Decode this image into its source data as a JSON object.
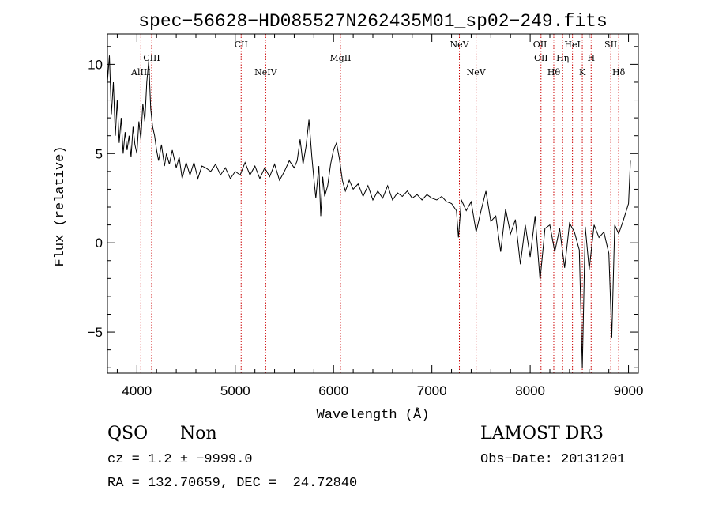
{
  "chart_data": {
    "type": "line",
    "title": "spec−56628−HD085527N262435M01_sp02−249.fits",
    "xlabel": "Wavelength (Å)",
    "ylabel": "Flux (relative)",
    "xlim": [
      3700,
      9100
    ],
    "ylim": [
      -7.3,
      11.7
    ],
    "xticks": [
      4000,
      5000,
      6000,
      7000,
      8000,
      9000
    ],
    "yticks": [
      -5,
      0,
      5,
      10
    ],
    "grid": false,
    "series": [
      {
        "x": [
          3700,
          3720,
          3740,
          3760,
          3780,
          3800,
          3820,
          3840,
          3860,
          3880,
          3900,
          3920,
          3940,
          3960,
          3980,
          4000,
          4020,
          4040,
          4060,
          4080,
          4100,
          4120,
          4140,
          4160,
          4180,
          4200,
          4220,
          4250,
          4280,
          4300,
          4330,
          4360,
          4400,
          4430,
          4460,
          4500,
          4540,
          4580,
          4620,
          4660,
          4700,
          4750,
          4800,
          4850,
          4900,
          4950,
          5000,
          5050,
          5100,
          5150,
          5200,
          5250,
          5300,
          5350,
          5400,
          5450,
          5500,
          5550,
          5600,
          5630,
          5660,
          5690,
          5720,
          5750,
          5780,
          5800,
          5820,
          5850,
          5870,
          5890,
          5910,
          5940,
          5970,
          6000,
          6030,
          6060,
          6090,
          6120,
          6160,
          6200,
          6250,
          6300,
          6350,
          6400,
          6450,
          6500,
          6550,
          6600,
          6650,
          6700,
          6750,
          6800,
          6850,
          6900,
          6950,
          7000,
          7050,
          7100,
          7150,
          7200,
          7250,
          7270,
          7300,
          7350,
          7400,
          7450,
          7500,
          7550,
          7600,
          7650,
          7700,
          7750,
          7800,
          7850,
          7900,
          7950,
          8000,
          8050,
          8100,
          8150,
          8200,
          8250,
          8300,
          8350,
          8400,
          8450,
          8500,
          8530,
          8560,
          8600,
          8650,
          8700,
          8750,
          8800,
          8830,
          8860,
          8900,
          8950,
          9000,
          9020
        ],
        "y": [
          9.0,
          10.5,
          7.2,
          9.0,
          6.0,
          8.0,
          5.6,
          7.0,
          5.0,
          6.2,
          5.2,
          6.0,
          4.8,
          6.5,
          5.5,
          5.0,
          6.8,
          5.8,
          7.8,
          6.8,
          9.0,
          10.2,
          7.5,
          6.5,
          6.0,
          5.2,
          4.6,
          5.5,
          4.3,
          5.0,
          4.4,
          5.2,
          4.2,
          4.8,
          3.6,
          4.5,
          3.8,
          4.5,
          3.6,
          4.3,
          4.2,
          4.0,
          4.4,
          3.8,
          4.2,
          3.6,
          4.0,
          3.8,
          4.5,
          3.8,
          4.3,
          3.6,
          4.2,
          3.7,
          4.4,
          3.5,
          4.0,
          4.6,
          4.2,
          4.6,
          5.8,
          4.4,
          5.4,
          6.9,
          4.8,
          3.6,
          2.5,
          4.3,
          1.5,
          3.7,
          2.6,
          3.2,
          4.4,
          5.2,
          5.6,
          4.7,
          3.5,
          2.9,
          3.5,
          3.0,
          3.3,
          2.6,
          3.2,
          2.4,
          2.9,
          2.5,
          3.2,
          2.4,
          2.8,
          2.6,
          2.9,
          2.5,
          2.7,
          2.4,
          2.7,
          2.5,
          2.4,
          2.6,
          2.3,
          2.2,
          1.8,
          0.3,
          2.4,
          1.8,
          2.3,
          0.6,
          1.8,
          2.9,
          1.2,
          1.5,
          -0.5,
          1.9,
          0.5,
          1.3,
          -1.2,
          1.0,
          -0.8,
          1.5,
          -2.1,
          0.8,
          1.0,
          -0.5,
          0.8,
          -1.4,
          1.1,
          0.6,
          -0.4,
          -7.0,
          0.9,
          -1.5,
          1.0,
          0.3,
          0.6,
          -0.6,
          -5.3,
          1.0,
          0.5,
          1.3,
          2.2,
          4.6
        ]
      }
    ],
    "emission_lines": [
      {
        "name": "AlIII",
        "x": 4040,
        "row": 2
      },
      {
        "name": "CIII",
        "x": 4150,
        "row": 1
      },
      {
        "name": "CII",
        "x": 5060,
        "row": 0
      },
      {
        "name": "NeIV",
        "x": 5310,
        "row": 2
      },
      {
        "name": "MgII",
        "x": 6070,
        "row": 1
      },
      {
        "name": "NeV",
        "x": 7280,
        "row": 0
      },
      {
        "name": "NeV",
        "x": 7450,
        "row": 2
      },
      {
        "name": "OII",
        "x": 8100,
        "row": 0
      },
      {
        "name": "OII",
        "x": 8110,
        "row": 1
      },
      {
        "name": "Hθ",
        "x": 8240,
        "row": 2
      },
      {
        "name": "Hη",
        "x": 8330,
        "row": 1
      },
      {
        "name": "HeI",
        "x": 8430,
        "row": 0
      },
      {
        "name": "K",
        "x": 8530,
        "row": 2
      },
      {
        "name": "H",
        "x": 8620,
        "row": 1
      },
      {
        "name": "SII",
        "x": 8820,
        "row": 0
      },
      {
        "name": "Hδ",
        "x": 8900,
        "row": 2
      }
    ],
    "line_color": "#000000",
    "marker_color": "#cc0000"
  },
  "info": {
    "class": "QSO",
    "subclass": "Non",
    "survey": "LAMOST DR3",
    "cz": "cz = 1.2 ± −9999.0",
    "obs_date": "Obs−Date: 20131201",
    "coords": "RA = 132.70659, DEC =  24.72840"
  }
}
